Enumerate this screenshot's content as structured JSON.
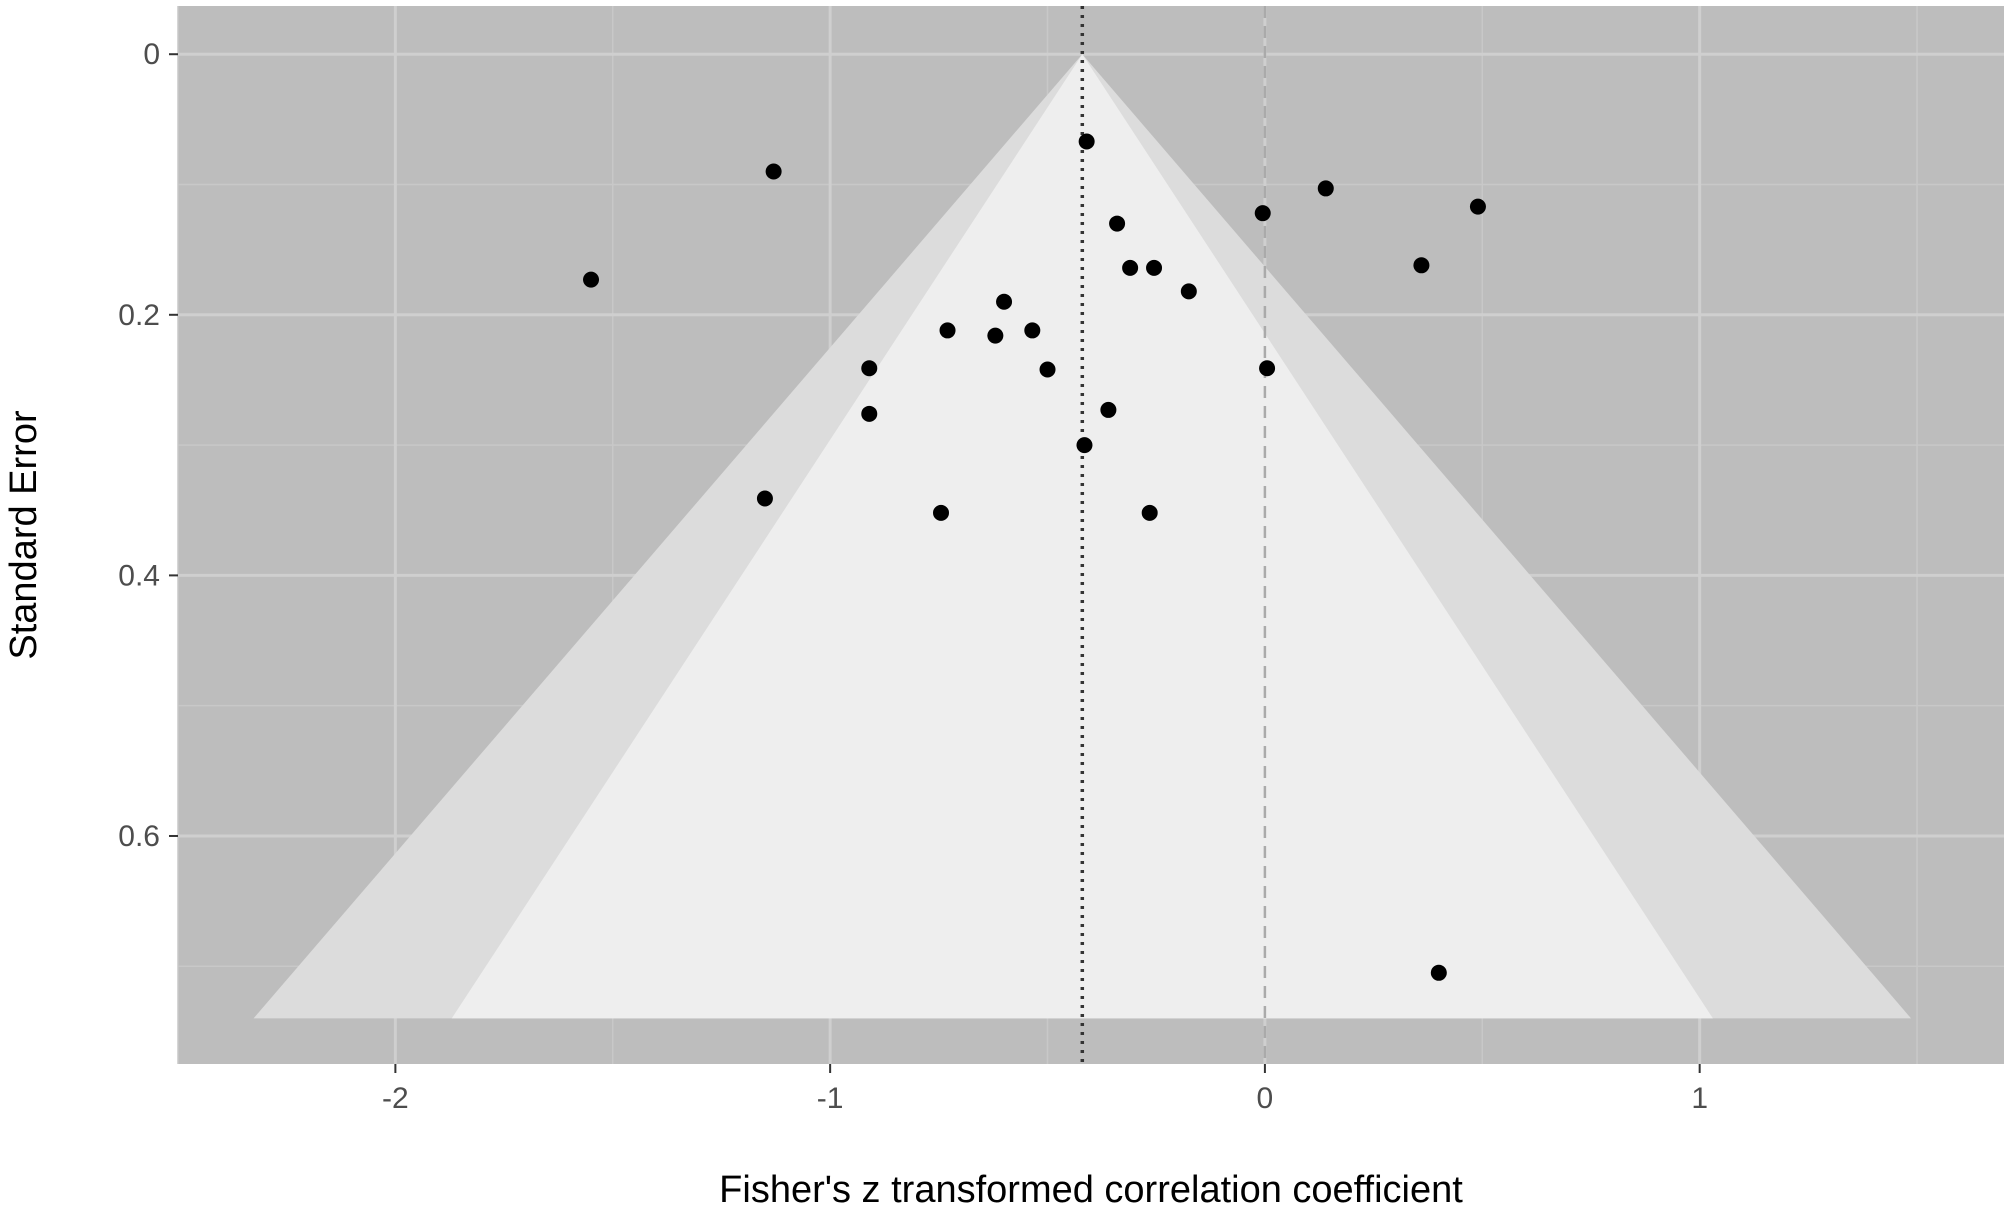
{
  "chart_data": {
    "type": "scatter",
    "xlabel": "Fisher's z transformed correlation coefficient",
    "ylabel": "Standard Error",
    "xlim": [
      -2.5,
      1.7
    ],
    "ylim": [
      0.775,
      -0.037
    ],
    "y_reversed": true,
    "x_ticks": [
      -2,
      -1,
      0,
      1
    ],
    "x_tick_labels": [
      "-2",
      "-1",
      "0",
      "1"
    ],
    "y_ticks": [
      0,
      0.2,
      0.4,
      0.6
    ],
    "y_tick_labels": [
      "0",
      "0.2",
      "0.4",
      "0.6"
    ],
    "x_minor_breaks": [
      -2.5,
      -1.5,
      -0.5,
      0.5,
      1.5
    ],
    "y_minor_breaks": [
      0.1,
      0.3,
      0.5,
      0.7
    ],
    "grid": true,
    "funnel": {
      "center": -0.42,
      "se_max": 0.74,
      "contours": [
        {
          "z": 2.576,
          "fill": "#dcdcdc"
        },
        {
          "z": 1.96,
          "fill": "#eeeeee"
        }
      ]
    },
    "reference_lines": [
      {
        "x": -0.42,
        "style": "dotted",
        "color": "#333333"
      },
      {
        "x": 0,
        "style": "dashed",
        "color": "#aaaaaa"
      }
    ],
    "points": [
      {
        "x": -0.41,
        "y": 0.067
      },
      {
        "x": -1.13,
        "y": 0.09
      },
      {
        "x": 0.14,
        "y": 0.103
      },
      {
        "x": 0.49,
        "y": 0.117
      },
      {
        "x": -0.005,
        "y": 0.122
      },
      {
        "x": -0.34,
        "y": 0.13
      },
      {
        "x": -1.55,
        "y": 0.173
      },
      {
        "x": 0.36,
        "y": 0.162
      },
      {
        "x": -0.31,
        "y": 0.164
      },
      {
        "x": -0.255,
        "y": 0.164
      },
      {
        "x": -0.175,
        "y": 0.182
      },
      {
        "x": -0.6,
        "y": 0.19
      },
      {
        "x": -0.73,
        "y": 0.212
      },
      {
        "x": -0.62,
        "y": 0.216
      },
      {
        "x": -0.535,
        "y": 0.212
      },
      {
        "x": -0.91,
        "y": 0.241
      },
      {
        "x": -0.5,
        "y": 0.242
      },
      {
        "x": 0.005,
        "y": 0.241
      },
      {
        "x": -0.91,
        "y": 0.276
      },
      {
        "x": -0.36,
        "y": 0.273
      },
      {
        "x": -0.415,
        "y": 0.3
      },
      {
        "x": -1.15,
        "y": 0.341
      },
      {
        "x": -0.745,
        "y": 0.352
      },
      {
        "x": -0.265,
        "y": 0.352
      },
      {
        "x": 0.4,
        "y": 0.705
      }
    ]
  }
}
